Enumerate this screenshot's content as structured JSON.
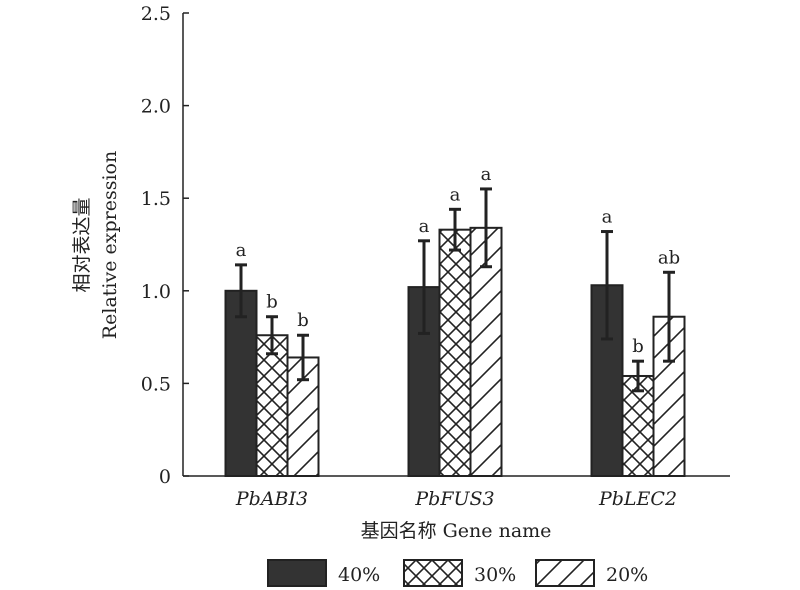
{
  "chart_data": {
    "type": "bar",
    "categories": [
      "PbABI3",
      "PbFUS3",
      "PbLEC2"
    ],
    "series": [
      {
        "name": "40%",
        "values": [
          1.0,
          1.02,
          1.03
        ],
        "errors": [
          0.14,
          0.25,
          0.29
        ],
        "letters": [
          "a",
          "a",
          "a"
        ],
        "color": "#333333",
        "pattern": "solid"
      },
      {
        "name": "30%",
        "values": [
          0.76,
          1.33,
          0.54
        ],
        "errors": [
          0.1,
          0.11,
          0.08
        ],
        "letters": [
          "b",
          "a",
          "b"
        ],
        "color": "#ffffff",
        "pattern": "crosshatch"
      },
      {
        "name": "20%",
        "values": [
          0.64,
          1.34,
          0.86
        ],
        "errors": [
          0.12,
          0.21,
          0.24
        ],
        "letters": [
          "b",
          "a",
          "ab"
        ],
        "color": "#ffffff",
        "pattern": "diagonal"
      }
    ],
    "ylim": [
      0,
      2.5
    ],
    "yticks": [
      "0",
      "0.5",
      "1.0",
      "1.5",
      "2.0",
      "2.5"
    ],
    "ytick_values": [
      0,
      0.5,
      1.0,
      1.5,
      2.0,
      2.5
    ],
    "ylabel_cn": "相对表达量",
    "ylabel_en": "Relative expression",
    "xlabel": "基因名称 Gene name",
    "legend_position": "bottom",
    "grid": false
  }
}
